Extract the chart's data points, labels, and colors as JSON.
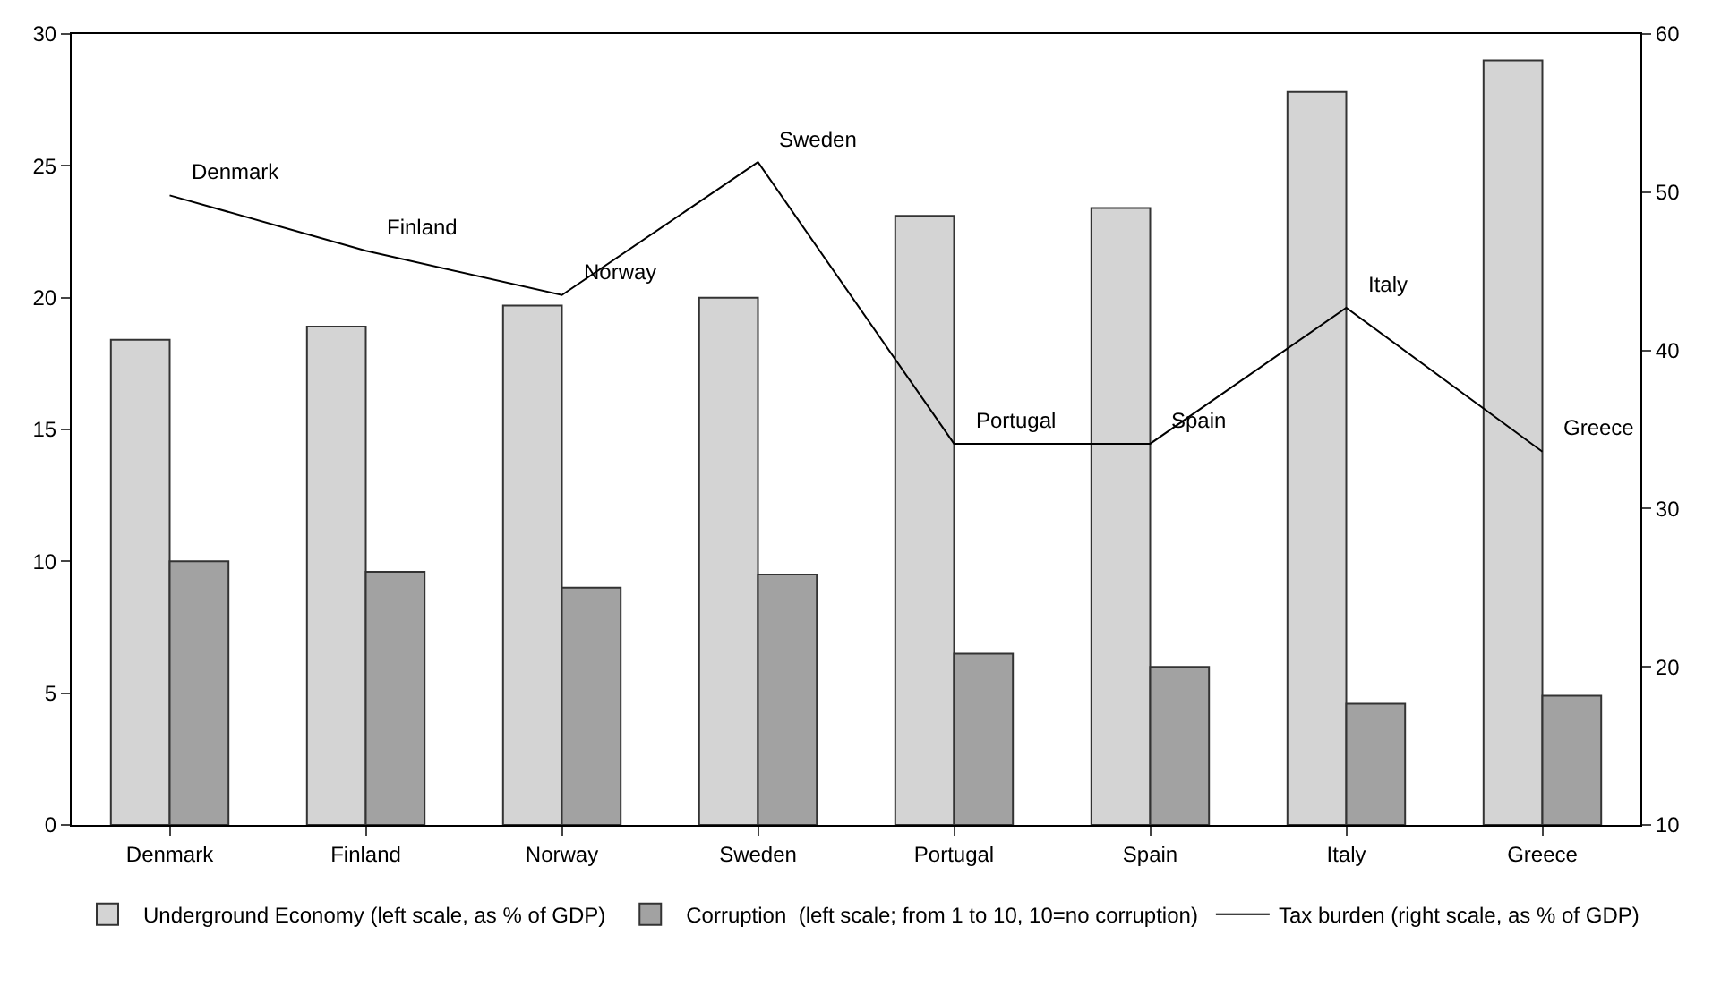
{
  "chart_data": {
    "type": "bar",
    "categories": [
      "Denmark",
      "Finland",
      "Norway",
      "Sweden",
      "Portugal",
      "Spain",
      "Italy",
      "Greece"
    ],
    "series": [
      {
        "name": "Underground Economy (left scale, as % of GDP)",
        "color": "#d4d4d4",
        "values": [
          18.4,
          18.9,
          19.7,
          20.0,
          23.1,
          23.4,
          27.8,
          29.0
        ]
      },
      {
        "name": "Corruption  (left scale; from 1 to 10, 10=no corruption)",
        "color": "#a2a2a2",
        "values": [
          10.0,
          9.6,
          9.0,
          9.5,
          6.5,
          6.0,
          4.6,
          4.9
        ]
      },
      {
        "name": "Tax burden (right scale, as % of GDP)",
        "type": "line",
        "axis": "y2",
        "color": "#000000",
        "values": [
          49.8,
          46.3,
          43.5,
          51.9,
          34.1,
          34.1,
          42.7,
          33.6
        ]
      }
    ],
    "ylim": [
      0,
      30
    ],
    "yticks": [
      0,
      5,
      10,
      15,
      20,
      25,
      30
    ],
    "y2lim": [
      10,
      60
    ],
    "y2ticks": [
      10,
      20,
      30,
      40,
      50,
      60
    ],
    "legend": "bottom",
    "marker": "none",
    "line_style": "solid",
    "annotations": [
      "Denmark",
      "Finland",
      "Norway",
      "Sweden",
      "Portugal",
      "Spain",
      "Italy",
      "Greece"
    ]
  }
}
